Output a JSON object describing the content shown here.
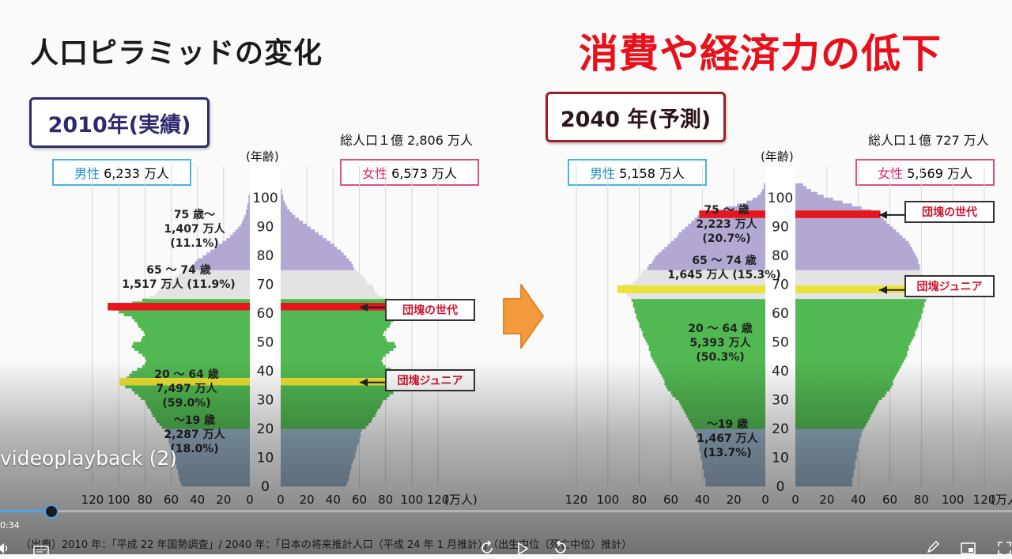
{
  "slide": {
    "title": "人口ピラミッドの変化",
    "headline": "消費や経済力の低下",
    "source_note": "（出典）2010 年：「平成 22 年国勢調査」/ 2040 年：「日本の将来推計人口（平成 24 年 1 月推計）」（出生中位（死亡中位）推計）"
  },
  "chart_data": [
    {
      "type": "bar",
      "orientation": "population-pyramid",
      "year_label": "2010年(実績)",
      "total_population": "総人口１億 2,806 万人",
      "male_label": "男性",
      "male_value": "6,233 万人",
      "female_label": "女性",
      "female_value": "6,573 万人",
      "age_axis_label": "(年齢)",
      "x_unit": "(万人)",
      "age_ticks": [
        "0",
        "10",
        "20",
        "30",
        "40",
        "50",
        "60",
        "70",
        "80",
        "90",
        "100"
      ],
      "x_ticks": [
        "120",
        "100",
        "80",
        "60",
        "40",
        "20",
        "0"
      ],
      "xlim": [
        0,
        120
      ],
      "ylim": [
        0,
        104
      ],
      "groups": [
        {
          "range": [
            0,
            19
          ],
          "lines": [
            "～19 歳",
            "2,287 万人",
            "(18.0%)"
          ],
          "color": "#9ab4c8"
        },
        {
          "range": [
            20,
            64
          ],
          "lines": [
            "20 ～ 64 歳",
            "7,497 万人",
            "(59.0%)"
          ],
          "color": "#52b852"
        },
        {
          "range": [
            65,
            74
          ],
          "lines": [
            "65 ～ 74 歳",
            "1,517 万人 (11.9%)"
          ],
          "color": "#e3e3e3"
        },
        {
          "range": [
            75,
            104
          ],
          "lines": [
            "75 歳～",
            "1,407 万人",
            "(11.1%)"
          ],
          "color": "#b3a8d4"
        }
      ],
      "highlights": [
        {
          "age": 62,
          "color": "#e8141e",
          "label": "団塊の世代"
        },
        {
          "age": 36,
          "color": "#ebe234",
          "label": "団塊ジュニア"
        }
      ],
      "male": [
        52,
        53,
        54,
        54,
        55,
        55,
        56,
        56,
        57,
        58,
        59,
        59,
        60,
        60,
        61,
        62,
        62,
        63,
        63,
        64,
        67,
        69,
        71,
        72,
        74,
        75,
        76,
        78,
        79,
        80,
        83,
        85,
        88,
        90,
        95,
        98,
        97,
        94,
        92,
        90,
        86,
        82,
        80,
        79,
        80,
        82,
        85,
        88,
        90,
        89,
        83,
        82,
        80,
        81,
        83,
        85,
        86,
        88,
        90,
        96,
        100,
        105,
        106,
        90,
        82,
        77,
        72,
        70,
        68,
        67,
        62,
        60,
        57,
        54,
        50,
        46,
        44,
        42,
        40,
        36,
        33,
        30,
        27,
        24,
        21,
        18,
        15,
        13,
        11,
        9,
        7,
        6,
        5,
        4,
        3,
        3,
        2,
        2,
        1,
        1,
        1,
        0,
        0,
        0,
        0
      ],
      "female": [
        50,
        51,
        52,
        52,
        53,
        53,
        54,
        54,
        55,
        56,
        57,
        57,
        58,
        58,
        59,
        60,
        60,
        61,
        61,
        62,
        65,
        67,
        69,
        70,
        72,
        73,
        74,
        76,
        77,
        78,
        81,
        83,
        86,
        88,
        93,
        96,
        95,
        92,
        90,
        88,
        84,
        80,
        78,
        77,
        78,
        80,
        83,
        86,
        88,
        87,
        81,
        80,
        78,
        79,
        81,
        83,
        84,
        86,
        88,
        94,
        98,
        103,
        104,
        89,
        82,
        78,
        74,
        72,
        71,
        70,
        66,
        65,
        63,
        61,
        58,
        56,
        55,
        54,
        52,
        50,
        48,
        46,
        43,
        41,
        38,
        35,
        32,
        29,
        26,
        23,
        20,
        17,
        14,
        11,
        9,
        7,
        5,
        4,
        3,
        2,
        2,
        1,
        1,
        0,
        0
      ]
    },
    {
      "type": "bar",
      "orientation": "population-pyramid",
      "year_label": "2040 年(予測)",
      "total_population": "総人口１億 727 万人",
      "male_label": "男性",
      "male_value": "5,158 万人",
      "female_label": "女性",
      "female_value": "5,569 万人",
      "age_axis_label": "(年齢)",
      "x_unit": "(万人)",
      "age_ticks": [
        "0",
        "10",
        "20",
        "30",
        "40",
        "50",
        "60",
        "70",
        "80",
        "90",
        "100"
      ],
      "x_ticks": [
        "120",
        "100",
        "80",
        "60",
        "40",
        "20",
        "0"
      ],
      "xlim": [
        0,
        120
      ],
      "ylim": [
        0,
        104
      ],
      "groups": [
        {
          "range": [
            0,
            19
          ],
          "lines": [
            "～19 歳",
            "1,467 万人",
            "(13.7%)"
          ],
          "color": "#9ab4c8"
        },
        {
          "range": [
            20,
            64
          ],
          "lines": [
            "20 ～ 64 歳",
            "5,393 万人",
            "(50.3%)"
          ],
          "color": "#52b852"
        },
        {
          "range": [
            65,
            74
          ],
          "lines": [
            "65 ～ 74 歳",
            "1,645 万人 (15.3%)"
          ],
          "color": "#e3e3e3"
        },
        {
          "range": [
            75,
            104
          ],
          "lines": [
            "75 ～ 歳",
            "2,223 万人",
            "(20.7%)"
          ],
          "color": "#b3a8d4"
        }
      ],
      "highlights": [
        {
          "age": 94,
          "color": "#e8141e",
          "label": "団塊の世代"
        },
        {
          "age": 68,
          "color": "#ebe234",
          "label": "団塊ジュニア"
        }
      ],
      "male": [
        38,
        38,
        38,
        39,
        39,
        39,
        40,
        40,
        40,
        41,
        41,
        41,
        42,
        42,
        42,
        43,
        43,
        44,
        44,
        45,
        46,
        47,
        48,
        49,
        50,
        51,
        52,
        53,
        54,
        55,
        57,
        59,
        60,
        62,
        63,
        64,
        64,
        65,
        66,
        67,
        68,
        69,
        70,
        71,
        72,
        73,
        73,
        74,
        74,
        75,
        76,
        77,
        78,
        78,
        79,
        80,
        80,
        81,
        82,
        82,
        83,
        83,
        84,
        84,
        85,
        86,
        88,
        90,
        92,
        90,
        84,
        82,
        80,
        79,
        78,
        75,
        74,
        72,
        71,
        70,
        68,
        66,
        64,
        62,
        60,
        58,
        56,
        55,
        53,
        51,
        49,
        47,
        45,
        43,
        40,
        32,
        25,
        18,
        12,
        8,
        5,
        3,
        2,
        1,
        1
      ],
      "female": [
        36,
        36,
        36,
        37,
        37,
        37,
        38,
        38,
        38,
        39,
        39,
        39,
        40,
        40,
        40,
        41,
        41,
        42,
        42,
        43,
        44,
        45,
        46,
        47,
        48,
        49,
        50,
        51,
        52,
        53,
        55,
        57,
        58,
        60,
        61,
        62,
        62,
        63,
        64,
        65,
        66,
        67,
        68,
        69,
        70,
        71,
        71,
        72,
        72,
        73,
        74,
        75,
        76,
        76,
        77,
        78,
        78,
        79,
        80,
        80,
        81,
        81,
        82,
        82,
        83,
        84,
        86,
        88,
        90,
        88,
        84,
        82,
        81,
        80,
        80,
        79,
        79,
        78,
        78,
        77,
        76,
        75,
        74,
        73,
        72,
        70,
        68,
        66,
        64,
        62,
        60,
        58,
        56,
        54,
        52,
        48,
        42,
        36,
        30,
        24,
        18,
        14,
        10,
        7,
        5
      ]
    }
  ],
  "player": {
    "video_title": "videoplayback (2)",
    "elapsed": "0:34",
    "progress_fraction": 0.05,
    "controls": [
      "play-icon",
      "skip-back-10-icon",
      "skip-forward-10-icon",
      "captions-icon",
      "volume-icon",
      "edit-icon",
      "miniplayer-icon",
      "fullscreen-icon"
    ]
  }
}
